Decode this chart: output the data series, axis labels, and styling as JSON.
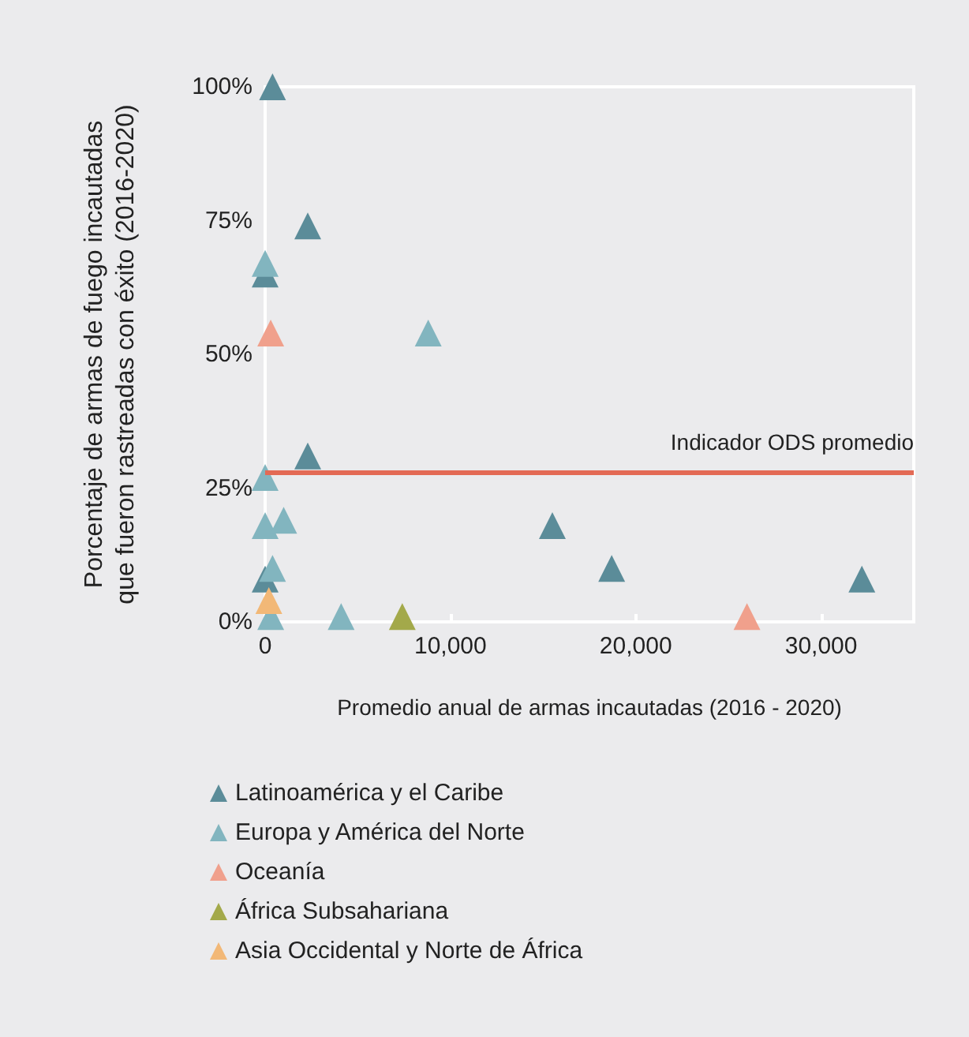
{
  "chart_data": {
    "type": "scatter",
    "xlabel": "Promedio anual de armas incautadas (2016 - 2020)",
    "ylabel": "Porcentaje de armas de fuego incautadas\nque fueron rastreadas con éxito (2016-2020)",
    "xlim": [
      0,
      35000
    ],
    "xticks": [
      {
        "value": 0,
        "label": "0"
      },
      {
        "value": 10000,
        "label": "10,000"
      },
      {
        "value": 20000,
        "label": "20,000"
      },
      {
        "value": 30000,
        "label": "30,000"
      }
    ],
    "ylim": [
      0,
      100
    ],
    "yticks": [
      {
        "value": 0,
        "label": "0%"
      },
      {
        "value": 25,
        "label": "25%"
      },
      {
        "value": 50,
        "label": "50%"
      },
      {
        "value": 75,
        "label": "75%"
      },
      {
        "value": 100,
        "label": "100%"
      }
    ],
    "grid": false,
    "legend": "bottom",
    "marker": "triangle",
    "ref_lines": [
      {
        "axis": "y",
        "value": 28,
        "label": "Indicador ODS promedio",
        "color": "#e36a55"
      }
    ],
    "series": [
      {
        "name": "Latinoamérica y el Caribe",
        "color": "#5b8c99",
        "x": [
          400,
          2300,
          0,
          2300,
          15500,
          18700,
          32200,
          0
        ],
        "values": [
          100,
          74,
          65,
          31,
          18,
          10,
          8,
          8
        ]
      },
      {
        "name": "Europa y América del Norte",
        "color": "#82b5bf",
        "x": [
          0,
          8800,
          0,
          0,
          1000,
          400,
          300,
          4100
        ],
        "values": [
          67,
          54,
          27,
          18,
          19,
          10,
          1,
          1
        ]
      },
      {
        "name": "Oceanía",
        "color": "#f0a08c",
        "x": [
          300,
          26000
        ],
        "values": [
          54,
          1
        ]
      },
      {
        "name": "África Subsahariana",
        "color": "#a3a94a",
        "x": [
          7400
        ],
        "values": [
          1
        ]
      },
      {
        "name": "Asia Occidental y Norte de África",
        "color": "#f2b877",
        "x": [
          200
        ],
        "values": [
          4
        ]
      }
    ]
  }
}
